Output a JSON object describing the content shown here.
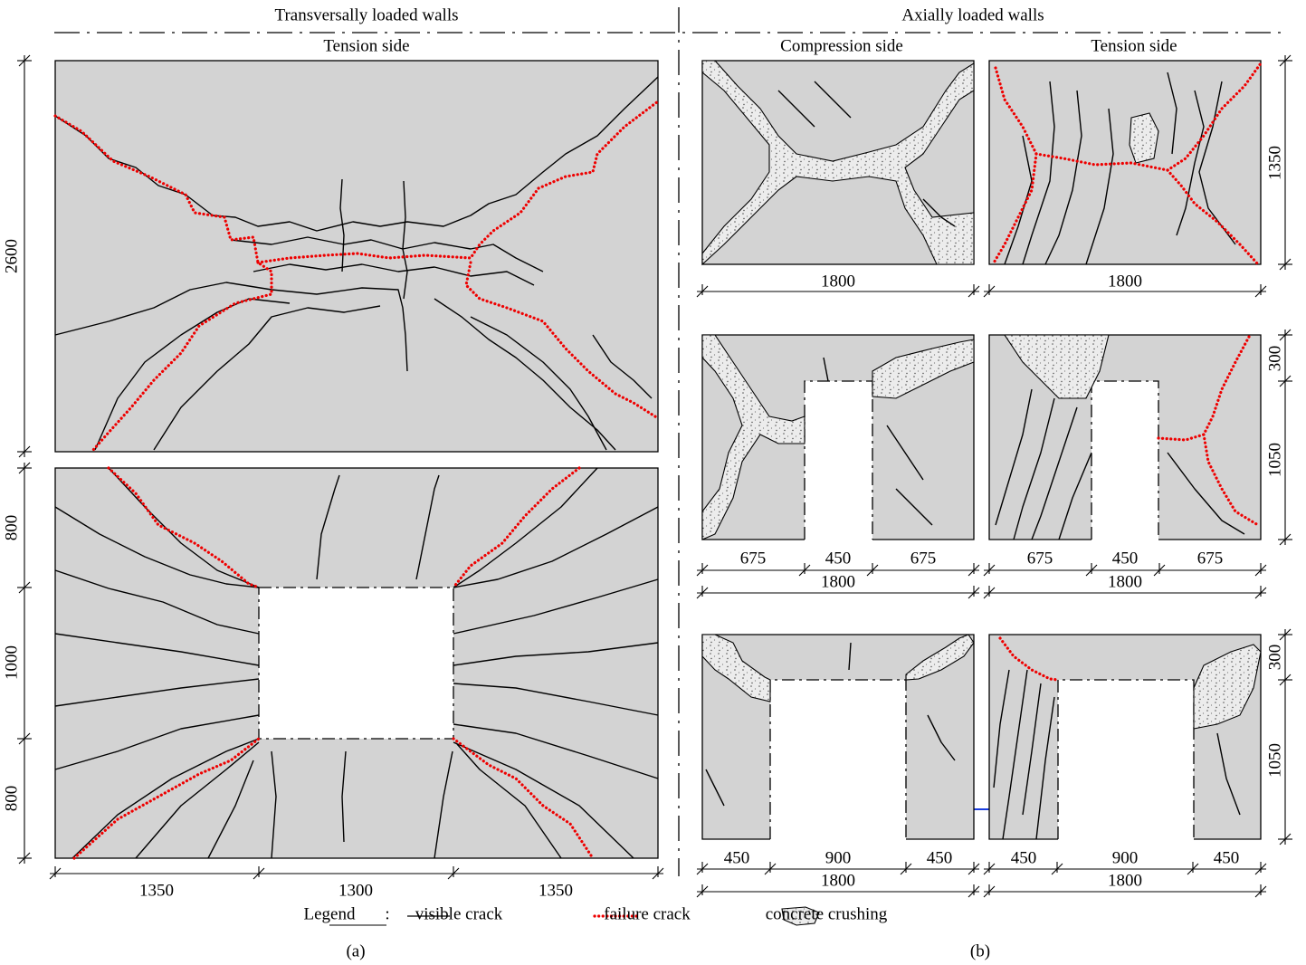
{
  "header": {
    "left_title": "Transversally loaded walls",
    "right_title": "Axially loaded walls"
  },
  "panel_a": {
    "subtitle": "Tension side",
    "height_top": "2600",
    "heights_bottom": [
      "800",
      "1000",
      "800"
    ],
    "widths": [
      "1350",
      "1300",
      "1350"
    ],
    "caption": "(a)"
  },
  "panel_b": {
    "subtitles": [
      "Compression side",
      "Tension side"
    ],
    "row1": {
      "height": "1350",
      "total_widths": [
        "1800",
        "1800"
      ]
    },
    "row2": {
      "heights": [
        "300",
        "1050"
      ],
      "part_widths": [
        [
          "675",
          "450",
          "675"
        ],
        [
          "675",
          "450",
          "675"
        ]
      ],
      "total_widths": [
        "1800",
        "1800"
      ]
    },
    "row3": {
      "heights": [
        "300",
        "1050"
      ],
      "part_widths": [
        [
          "450",
          "900",
          "450"
        ],
        [
          "450",
          "900",
          "450"
        ]
      ],
      "total_widths": [
        "1800",
        "1800"
      ]
    },
    "caption": "(b)"
  },
  "legend": {
    "title": "Legend",
    "separator": ":",
    "items": [
      "visible crack",
      "failure crack",
      "concrete crushing"
    ]
  }
}
